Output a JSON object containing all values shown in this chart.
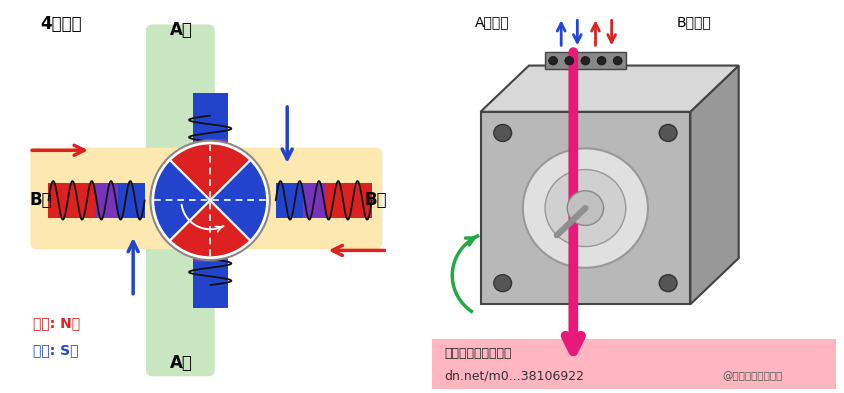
{
  "bg_color": "#ffffff",
  "left": {
    "title": "4极电机",
    "green_color": "#c8e6c0",
    "yellow_color": "#fde8b0",
    "red_pole": "#dd2020",
    "blue_pole": "#2244cc",
    "purple_pole": "#8833aa",
    "coil_color": "#111111",
    "legend_N_text": "红色: N极",
    "legend_N_color": "#dd2020",
    "legend_S_text": "蓝色: S极",
    "legend_S_color": "#2244cc",
    "A_label": "A相",
    "B_label": "B相",
    "arrow_red": "#dd2020",
    "arrow_blue": "#2244cc"
  },
  "right": {
    "A_label": "A相输入",
    "B_label": "B相输入",
    "motor_face": "#b8b8b8",
    "motor_top": "#d8d8d8",
    "motor_right": "#989898",
    "motor_edge": "#444444",
    "bolt_color": "#555555",
    "face_plate": "#e0e0e0",
    "shaft_color": "#909090",
    "connector_color": "#888888",
    "arrow_pink": "#e8197a",
    "arrow_blue": "#2244dd",
    "arrow_red": "#dd2222",
    "arrow_green": "#22aa44",
    "bottom_bar": "#ffb6c1",
    "bottom_text1": "执行另一个步进操作",
    "bottom_text2": "dn.net/m0...38106922",
    "watermark": "@稀土掘金技术社区"
  }
}
